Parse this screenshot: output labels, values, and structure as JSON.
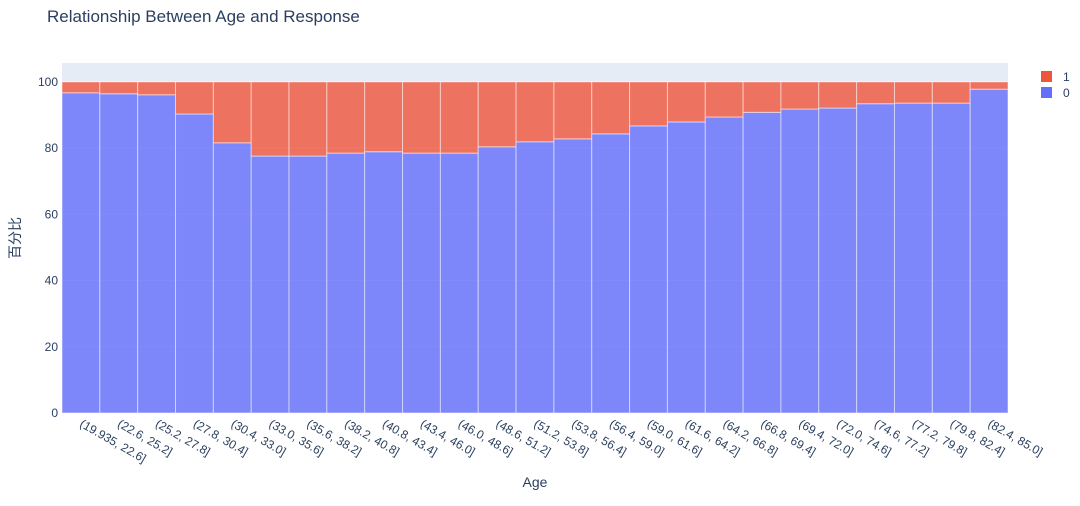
{
  "chart_data": {
    "type": "bar",
    "stacked": true,
    "title": "Relationship Between Age and Response",
    "xlabel": "Age",
    "ylabel": "百分比",
    "ylim": [
      0,
      105.7
    ],
    "yticks": [
      0,
      20,
      40,
      60,
      80,
      100
    ],
    "grid": true,
    "legend_position": "top-right",
    "categories": [
      "(19.935, 22.6]",
      "(22.6, 25.2]",
      "(25.2, 27.8]",
      "(27.8, 30.4]",
      "(30.4, 33.0]",
      "(33.0, 35.6]",
      "(35.6, 38.2]",
      "(38.2, 40.8]",
      "(40.8, 43.4]",
      "(43.4, 46.0]",
      "(46.0, 48.6]",
      "(48.6, 51.2]",
      "(51.2, 53.8]",
      "(53.8, 56.4]",
      "(56.4, 59.0]",
      "(59.0, 61.6]",
      "(61.6, 64.2]",
      "(64.2, 66.8]",
      "(66.8, 69.4]",
      "(69.4, 72.0]",
      "(72.0, 74.6]",
      "(74.6, 77.2]",
      "(77.2, 79.8]",
      "(79.8, 82.4]",
      "(82.4, 85.0]"
    ],
    "series": [
      {
        "name": "0",
        "color": "#636efa",
        "values": [
          96.7,
          96.4,
          96.1,
          90.3,
          81.6,
          77.6,
          77.6,
          78.5,
          78.9,
          78.5,
          78.5,
          80.4,
          81.9,
          82.8,
          84.3,
          86.7,
          87.9,
          89.4,
          90.8,
          91.8,
          92.1,
          93.4,
          93.6,
          93.6,
          97.8
        ]
      },
      {
        "name": "1",
        "color": "#EF553B",
        "values": [
          3.3,
          3.6,
          3.9,
          9.7,
          18.4,
          22.4,
          22.4,
          21.5,
          21.1,
          21.5,
          21.5,
          19.6,
          18.1,
          17.2,
          15.7,
          13.3,
          12.1,
          10.6,
          9.2,
          8.2,
          7.9,
          6.6,
          6.4,
          6.4,
          2.2
        ]
      }
    ],
    "legend": [
      {
        "label": "1",
        "color": "#EF553B"
      },
      {
        "label": "0",
        "color": "#636efa"
      }
    ]
  }
}
